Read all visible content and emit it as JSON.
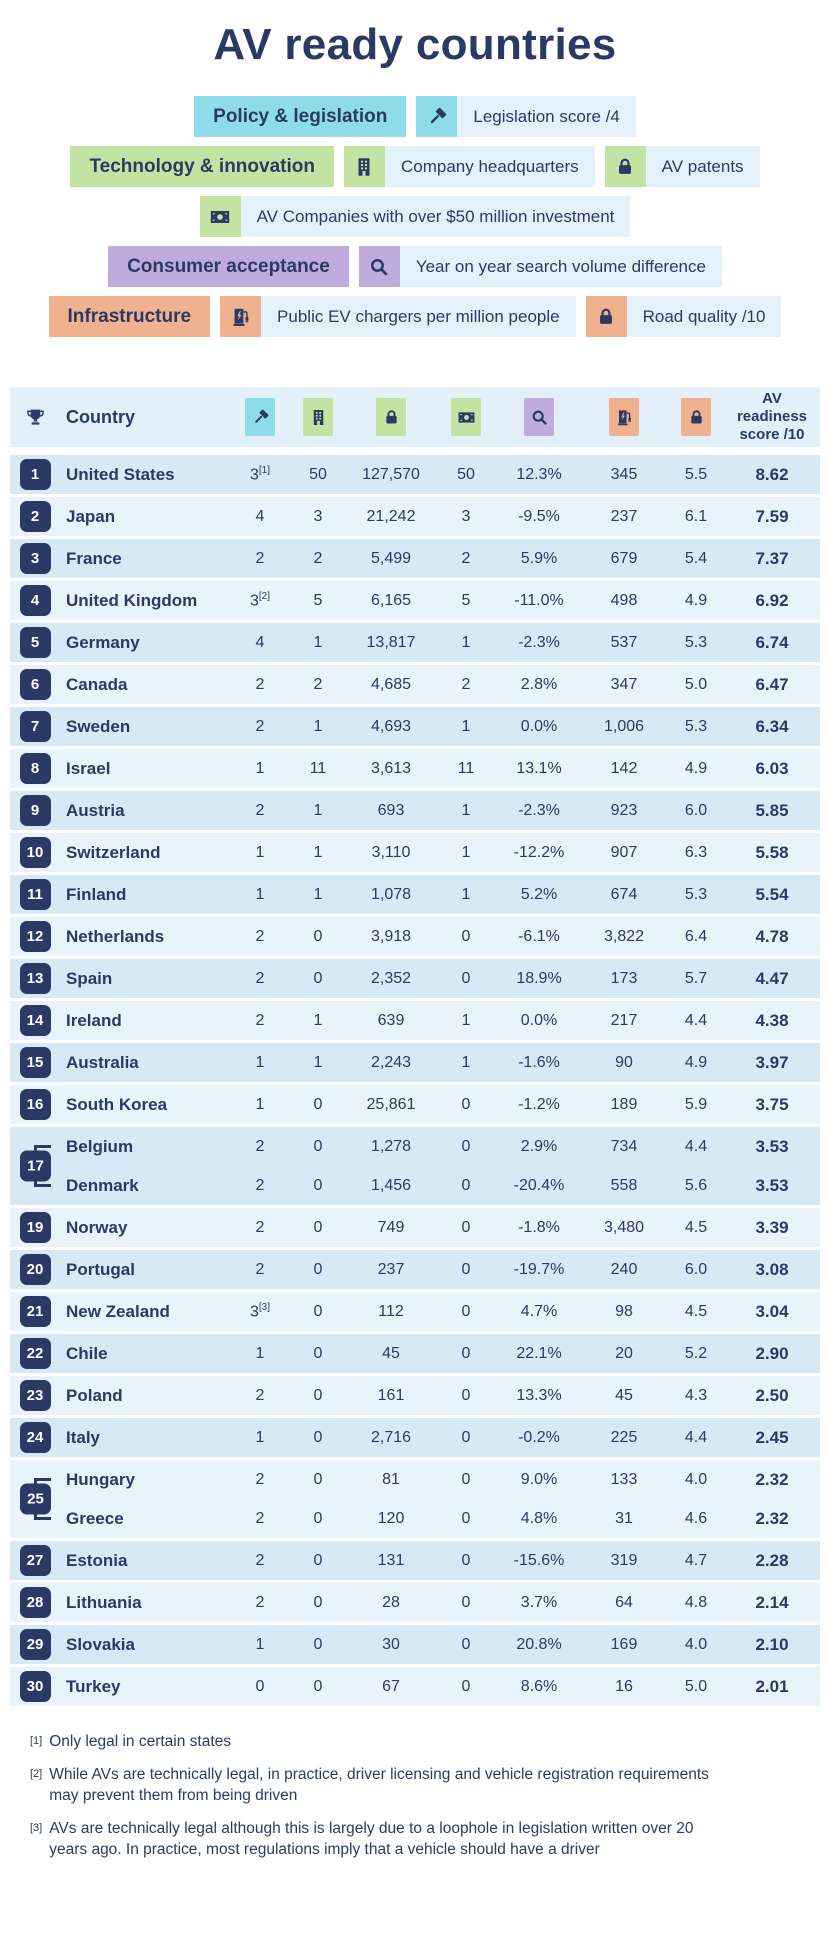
{
  "title": "AV ready countries",
  "colors": {
    "navy": "#2b3a64",
    "policy_cyan": "#8edce9",
    "technology_green": "#c2e3a2",
    "consumer_purple": "#c0abdd",
    "infrastructure_orange": "#f0b18e",
    "label_bg": "#e4f1fb",
    "header_bg": "#e3eff9",
    "row_dark": "#d8e9f6",
    "row_light": "#e9f3fb"
  },
  "icons": {
    "legislation": "gavel-icon",
    "headquarters": "building-icon",
    "patents": "padlock-icon",
    "companies": "money-icon",
    "search": "search-icon",
    "chargers": "ev-charger-icon",
    "road_quality": "padlock-icon",
    "rank": "trophy-icon"
  },
  "legend": {
    "policy_label": "Policy & legislation",
    "legislation_label": "Legislation score /4",
    "tech_label": "Technology & innovation",
    "hq_label": "Company headquarters",
    "patents_label": "AV patents",
    "companies_label": "AV Companies with over $50 million investment",
    "consumer_label": "Consumer acceptance",
    "search_label": "Year on year search volume difference",
    "infra_label": "Infrastructure",
    "chargers_label": "Public EV chargers per million people",
    "road_label": "Road quality /10"
  },
  "table": {
    "country_header": "Country",
    "score_header": "AV readiness score /10",
    "rows": [
      {
        "rank": "1",
        "country": "United States",
        "values": [
          "3[1]",
          "50",
          "127,570",
          "50",
          "12.3%",
          "345",
          "5.5"
        ],
        "score": "8.62"
      },
      {
        "rank": "2",
        "country": "Japan",
        "values": [
          "4",
          "3",
          "21,242",
          "3",
          "-9.5%",
          "237",
          "6.1"
        ],
        "score": "7.59"
      },
      {
        "rank": "3",
        "country": "France",
        "values": [
          "2",
          "2",
          "5,499",
          "2",
          "5.9%",
          "679",
          "5.4"
        ],
        "score": "7.37"
      },
      {
        "rank": "4",
        "country": "United Kingdom",
        "values": [
          "3[2]",
          "5",
          "6,165",
          "5",
          "-11.0%",
          "498",
          "4.9"
        ],
        "score": "6.92"
      },
      {
        "rank": "5",
        "country": "Germany",
        "values": [
          "4",
          "1",
          "13,817",
          "1",
          "-2.3%",
          "537",
          "5.3"
        ],
        "score": "6.74"
      },
      {
        "rank": "6",
        "country": "Canada",
        "values": [
          "2",
          "2",
          "4,685",
          "2",
          "2.8%",
          "347",
          "5.0"
        ],
        "score": "6.47"
      },
      {
        "rank": "7",
        "country": "Sweden",
        "values": [
          "2",
          "1",
          "4,693",
          "1",
          "0.0%",
          "1,006",
          "5.3"
        ],
        "score": "6.34"
      },
      {
        "rank": "8",
        "country": "Israel",
        "values": [
          "1",
          "11",
          "3,613",
          "11",
          "13.1%",
          "142",
          "4.9"
        ],
        "score": "6.03"
      },
      {
        "rank": "9",
        "country": "Austria",
        "values": [
          "2",
          "1",
          "693",
          "1",
          "-2.3%",
          "923",
          "6.0"
        ],
        "score": "5.85"
      },
      {
        "rank": "10",
        "country": "Switzerland",
        "values": [
          "1",
          "1",
          "3,110",
          "1",
          "-12.2%",
          "907",
          "6.3"
        ],
        "score": "5.58"
      },
      {
        "rank": "11",
        "country": "Finland",
        "values": [
          "1",
          "1",
          "1,078",
          "1",
          "5.2%",
          "674",
          "5.3"
        ],
        "score": "5.54"
      },
      {
        "rank": "12",
        "country": "Netherlands",
        "values": [
          "2",
          "0",
          "3,918",
          "0",
          "-6.1%",
          "3,822",
          "6.4"
        ],
        "score": "4.78"
      },
      {
        "rank": "13",
        "country": "Spain",
        "values": [
          "2",
          "0",
          "2,352",
          "0",
          "18.9%",
          "173",
          "5.7"
        ],
        "score": "4.47"
      },
      {
        "rank": "14",
        "country": "Ireland",
        "values": [
          "2",
          "1",
          "639",
          "1",
          "0.0%",
          "217",
          "4.4"
        ],
        "score": "4.38"
      },
      {
        "rank": "15",
        "country": "Australia",
        "values": [
          "1",
          "1",
          "2,243",
          "1",
          "-1.6%",
          "90",
          "4.9"
        ],
        "score": "3.97"
      },
      {
        "rank": "16",
        "country": "South Korea",
        "values": [
          "1",
          "0",
          "25,861",
          "0",
          "-1.2%",
          "189",
          "5.9"
        ],
        "score": "3.75"
      },
      {
        "rank": "17",
        "tie": [
          {
            "country": "Belgium",
            "values": [
              "2",
              "0",
              "1,278",
              "0",
              "2.9%",
              "734",
              "4.4"
            ],
            "score": "3.53"
          },
          {
            "country": "Denmark",
            "values": [
              "2",
              "0",
              "1,456",
              "0",
              "-20.4%",
              "558",
              "5.6"
            ],
            "score": "3.53"
          }
        ]
      },
      {
        "rank": "19",
        "country": "Norway",
        "values": [
          "2",
          "0",
          "749",
          "0",
          "-1.8%",
          "3,480",
          "4.5"
        ],
        "score": "3.39"
      },
      {
        "rank": "20",
        "country": "Portugal",
        "values": [
          "2",
          "0",
          "237",
          "0",
          "-19.7%",
          "240",
          "6.0"
        ],
        "score": "3.08"
      },
      {
        "rank": "21",
        "country": "New Zealand",
        "values": [
          "3[3]",
          "0",
          "112",
          "0",
          "4.7%",
          "98",
          "4.5"
        ],
        "score": "3.04"
      },
      {
        "rank": "22",
        "country": "Chile",
        "values": [
          "1",
          "0",
          "45",
          "0",
          "22.1%",
          "20",
          "5.2"
        ],
        "score": "2.90"
      },
      {
        "rank": "23",
        "country": "Poland",
        "values": [
          "2",
          "0",
          "161",
          "0",
          "13.3%",
          "45",
          "4.3"
        ],
        "score": "2.50"
      },
      {
        "rank": "24",
        "country": "Italy",
        "values": [
          "1",
          "0",
          "2,716",
          "0",
          "-0.2%",
          "225",
          "4.4"
        ],
        "score": "2.45"
      },
      {
        "rank": "25",
        "tie": [
          {
            "country": "Hungary",
            "values": [
              "2",
              "0",
              "81",
              "0",
              "9.0%",
              "133",
              "4.0"
            ],
            "score": "2.32"
          },
          {
            "country": "Greece",
            "values": [
              "2",
              "0",
              "120",
              "0",
              "4.8%",
              "31",
              "4.6"
            ],
            "score": "2.32"
          }
        ]
      },
      {
        "rank": "27",
        "country": "Estonia",
        "values": [
          "2",
          "0",
          "131",
          "0",
          "-15.6%",
          "319",
          "4.7"
        ],
        "score": "2.28"
      },
      {
        "rank": "28",
        "country": "Lithuania",
        "values": [
          "2",
          "0",
          "28",
          "0",
          "3.7%",
          "64",
          "4.8"
        ],
        "score": "2.14"
      },
      {
        "rank": "29",
        "country": "Slovakia",
        "values": [
          "1",
          "0",
          "30",
          "0",
          "20.8%",
          "169",
          "4.0"
        ],
        "score": "2.10"
      },
      {
        "rank": "30",
        "country": "Turkey",
        "values": [
          "0",
          "0",
          "67",
          "0",
          "8.6%",
          "16",
          "5.0"
        ],
        "score": "2.01"
      }
    ]
  },
  "footnotes": [
    {
      "marker": "[1]",
      "text": "Only legal in certain states"
    },
    {
      "marker": "[2]",
      "text": "While AVs are technically legal, in practice, driver licensing and vehicle registration requirements may prevent them from being driven"
    },
    {
      "marker": "[3]",
      "text": "AVs are technically legal although this is largely due to a loophole in legislation written over 20 years ago. In practice, most regulations imply that a vehicle should have a driver"
    }
  ]
}
